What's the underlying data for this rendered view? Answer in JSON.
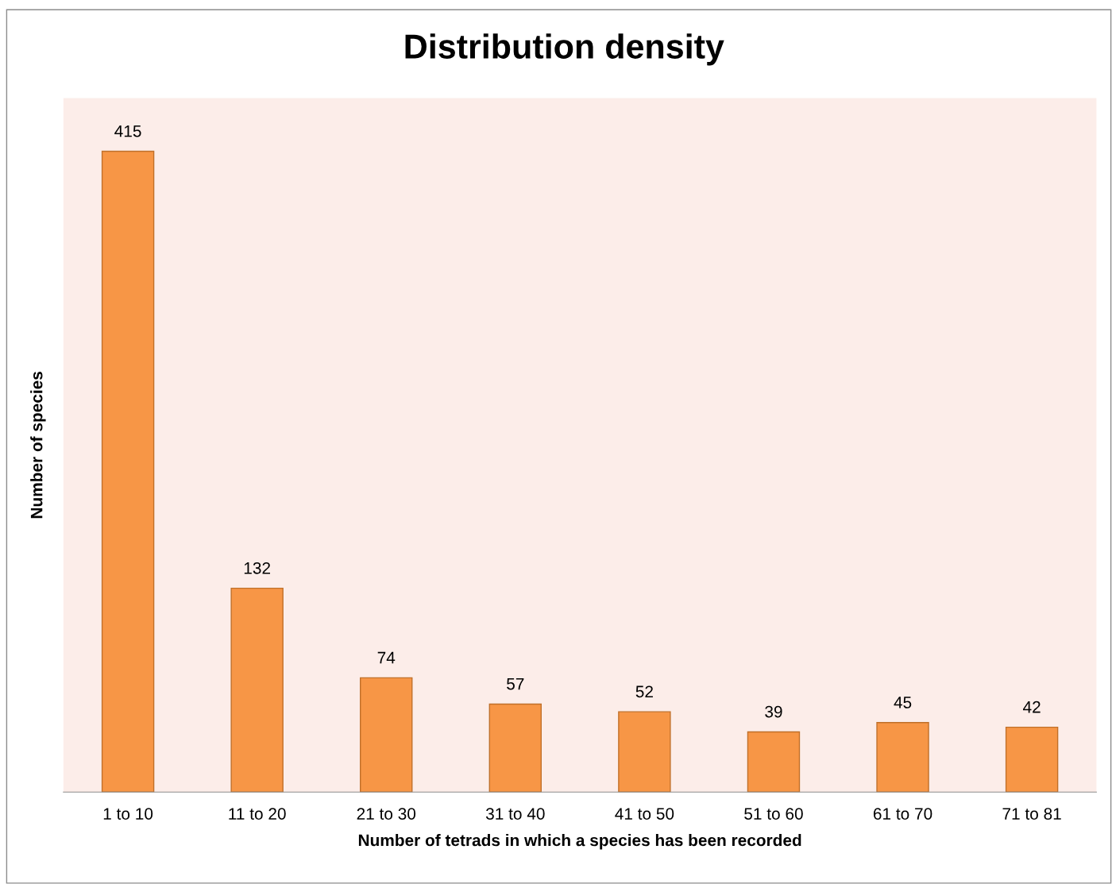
{
  "chart_data": {
    "type": "bar",
    "title": "Distribution density",
    "xlabel": "Number of tetrads in which a species has been recorded",
    "ylabel": "Number of species",
    "categories": [
      "1 to 10",
      "11 to 20",
      "21 to 30",
      "31 to 40",
      "41 to 50",
      "51 to 60",
      "61 to 70",
      "71 to 81"
    ],
    "values": [
      415,
      132,
      74,
      57,
      52,
      39,
      45,
      42
    ],
    "color": "#f79646",
    "data_labels": true,
    "grid": false,
    "legend": false
  }
}
